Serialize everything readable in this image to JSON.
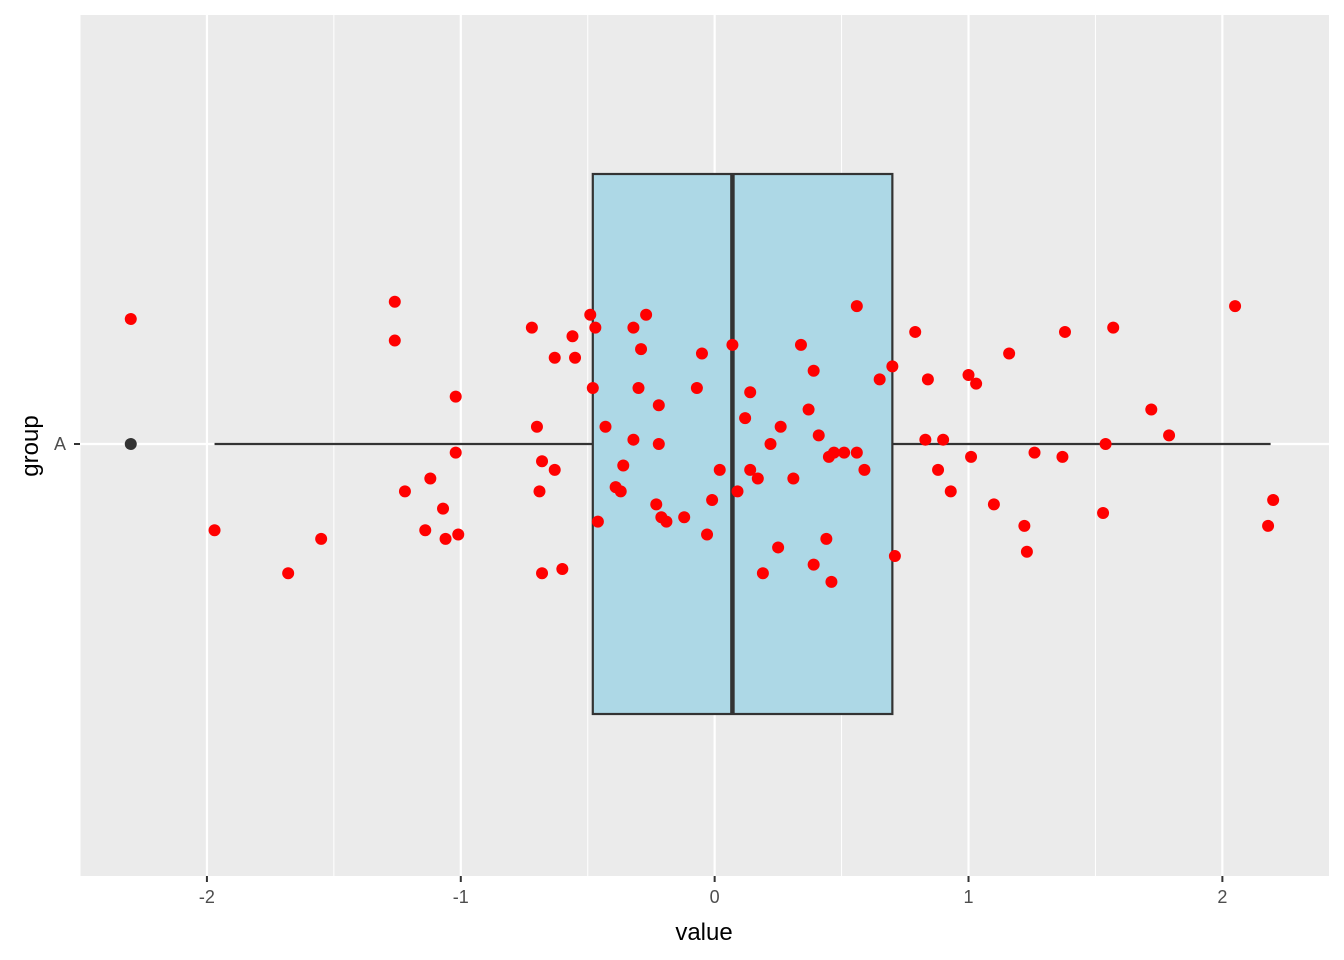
{
  "chart_data": {
    "type": "boxplot",
    "orientation": "horizontal",
    "xlabel": "value",
    "ylabel": "group",
    "x_ticks": [
      -2,
      -1,
      0,
      1,
      2
    ],
    "x_tick_labels": [
      "-2",
      "-1",
      "0",
      "1",
      "2"
    ],
    "xlim": [
      -2.5,
      2.42
    ],
    "categories": [
      "A"
    ],
    "grid": true,
    "legend": "none",
    "colors": {
      "panel": "#EBEBEB",
      "grid": "#FFFFFF",
      "box_fill": "#ADD8E6",
      "box_line": "#333333",
      "points": "#FF0000",
      "outlier": "#333333"
    },
    "box": {
      "category": "A",
      "whisker_low": -1.97,
      "q1": -0.48,
      "median": 0.07,
      "q3": 0.7,
      "whisker_high": 2.19,
      "outliers": [
        -2.3
      ]
    },
    "jitter_points": [
      [
        -2.3,
        0.29
      ],
      [
        -1.97,
        -0.2
      ],
      [
        -1.68,
        -0.3
      ],
      [
        -1.55,
        -0.22
      ],
      [
        -1.26,
        0.33
      ],
      [
        -1.26,
        0.24
      ],
      [
        -1.22,
        -0.11
      ],
      [
        -1.12,
        -0.08
      ],
      [
        -1.14,
        -0.2
      ],
      [
        -1.07,
        -0.15
      ],
      [
        -1.06,
        -0.22
      ],
      [
        -1.02,
        0.11
      ],
      [
        -1.02,
        -0.02
      ],
      [
        -1.01,
        -0.21
      ],
      [
        -0.72,
        0.27
      ],
      [
        -0.7,
        0.04
      ],
      [
        -0.68,
        -0.04
      ],
      [
        -0.69,
        -0.11
      ],
      [
        -0.68,
        -0.3
      ],
      [
        -0.63,
        0.2
      ],
      [
        -0.63,
        -0.06
      ],
      [
        -0.6,
        -0.29
      ],
      [
        -0.56,
        0.25
      ],
      [
        -0.55,
        0.2
      ],
      [
        -0.49,
        0.3
      ],
      [
        -0.48,
        0.13
      ],
      [
        -0.47,
        0.27
      ],
      [
        -0.46,
        -0.18
      ],
      [
        -0.43,
        0.04
      ],
      [
        -0.39,
        -0.1
      ],
      [
        -0.37,
        -0.11
      ],
      [
        -0.36,
        -0.05
      ],
      [
        -0.32,
        0.27
      ],
      [
        -0.32,
        0.01
      ],
      [
        -0.3,
        0.13
      ],
      [
        -0.29,
        0.22
      ],
      [
        -0.27,
        0.3
      ],
      [
        -0.22,
        0.09
      ],
      [
        -0.22,
        0.0
      ],
      [
        -0.23,
        -0.14
      ],
      [
        -0.21,
        -0.17
      ],
      [
        -0.19,
        -0.18
      ],
      [
        -0.12,
        -0.17
      ],
      [
        -0.07,
        0.13
      ],
      [
        -0.05,
        0.21
      ],
      [
        -0.03,
        -0.21
      ],
      [
        -0.01,
        -0.13
      ],
      [
        0.02,
        -0.06
      ],
      [
        0.07,
        0.23
      ],
      [
        0.09,
        -0.11
      ],
      [
        0.12,
        0.06
      ],
      [
        0.14,
        0.12
      ],
      [
        0.14,
        -0.06
      ],
      [
        0.17,
        -0.08
      ],
      [
        0.19,
        -0.3
      ],
      [
        0.25,
        -0.24
      ],
      [
        0.26,
        0.04
      ],
      [
        0.22,
        0.0
      ],
      [
        0.31,
        -0.08
      ],
      [
        0.34,
        0.23
      ],
      [
        0.37,
        0.08
      ],
      [
        0.39,
        0.17
      ],
      [
        0.39,
        -0.28
      ],
      [
        0.41,
        0.02
      ],
      [
        0.44,
        -0.22
      ],
      [
        0.45,
        -0.03
      ],
      [
        0.46,
        -0.32
      ],
      [
        0.47,
        -0.02
      ],
      [
        0.51,
        -0.02
      ],
      [
        0.56,
        0.32
      ],
      [
        0.56,
        -0.02
      ],
      [
        0.59,
        -0.06
      ],
      [
        0.65,
        0.15
      ],
      [
        0.7,
        0.18
      ],
      [
        0.71,
        -0.26
      ],
      [
        0.79,
        0.26
      ],
      [
        0.83,
        0.01
      ],
      [
        0.84,
        0.15
      ],
      [
        0.88,
        -0.06
      ],
      [
        0.9,
        0.01
      ],
      [
        0.93,
        -0.11
      ],
      [
        1.0,
        0.16
      ],
      [
        1.01,
        -0.03
      ],
      [
        1.03,
        0.14
      ],
      [
        1.1,
        -0.14
      ],
      [
        1.16,
        0.21
      ],
      [
        1.22,
        -0.19
      ],
      [
        1.23,
        -0.25
      ],
      [
        1.26,
        -0.02
      ],
      [
        1.37,
        -0.03
      ],
      [
        1.38,
        0.26
      ],
      [
        1.53,
        -0.16
      ],
      [
        1.54,
        0.0
      ],
      [
        1.57,
        0.27
      ],
      [
        1.72,
        0.08
      ],
      [
        1.79,
        0.02
      ],
      [
        2.05,
        0.32
      ],
      [
        2.18,
        -0.19
      ],
      [
        2.2,
        -0.13
      ]
    ]
  }
}
